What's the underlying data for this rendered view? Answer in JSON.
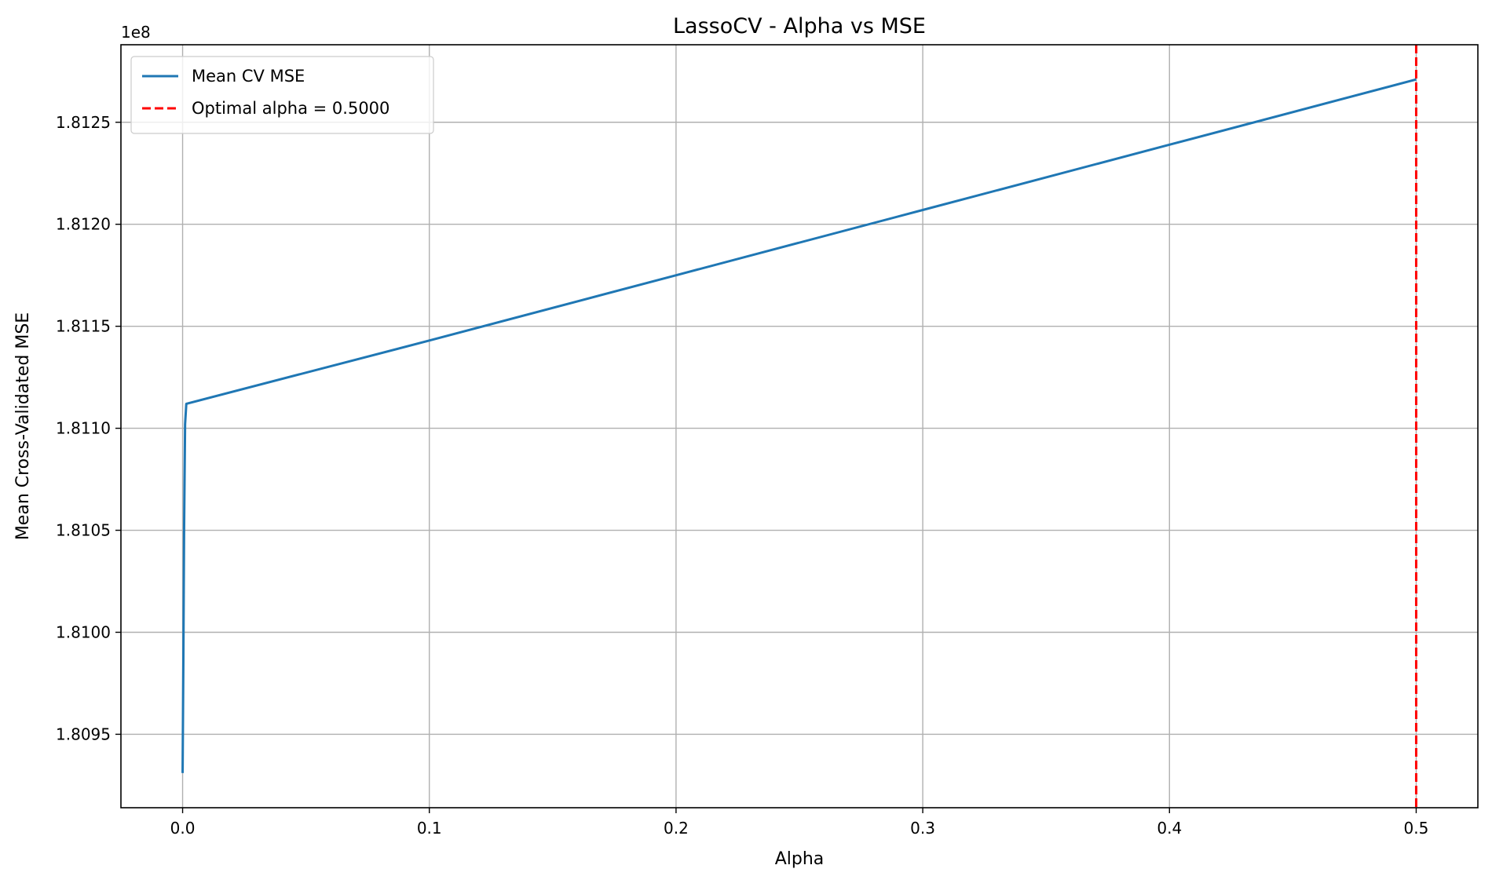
{
  "chart_data": {
    "type": "line",
    "title": "LassoCV - Alpha vs MSE",
    "xlabel": "Alpha",
    "ylabel": "Mean Cross-Validated MSE",
    "y_offset_label": "1e8",
    "y_scale": 100000000,
    "xlim": [
      -0.025,
      0.525
    ],
    "ylim": [
      1.80914,
      1.81288
    ],
    "x_ticks": [
      0.0,
      0.1,
      0.2,
      0.3,
      0.4,
      0.5
    ],
    "x_tick_labels": [
      "0.0",
      "0.1",
      "0.2",
      "0.3",
      "0.4",
      "0.5"
    ],
    "y_ticks": [
      1.8095,
      1.81,
      1.8105,
      1.811,
      1.8115,
      1.812,
      1.8125
    ],
    "y_tick_labels": [
      "1.8095",
      "1.8100",
      "1.8105",
      "1.8110",
      "1.8115",
      "1.8120",
      "1.8125"
    ],
    "grid": true,
    "legend_position": "top-left",
    "series": [
      {
        "name": "Mean CV MSE",
        "color": "#1f77b4",
        "style": "solid",
        "x": [
          0.0,
          0.0003,
          0.0006,
          0.001,
          0.0015,
          0.1,
          0.2,
          0.3,
          0.4,
          0.5
        ],
        "y": [
          1.80931,
          1.80985,
          1.8105,
          1.81102,
          1.81112,
          1.81143,
          1.81175,
          1.81207,
          1.81239,
          1.81271
        ]
      }
    ],
    "reference_lines": [
      {
        "name": "Optimal alpha = 0.5000",
        "orientation": "vertical",
        "x": 0.5,
        "color": "#ff0000",
        "style": "dashed"
      }
    ]
  }
}
